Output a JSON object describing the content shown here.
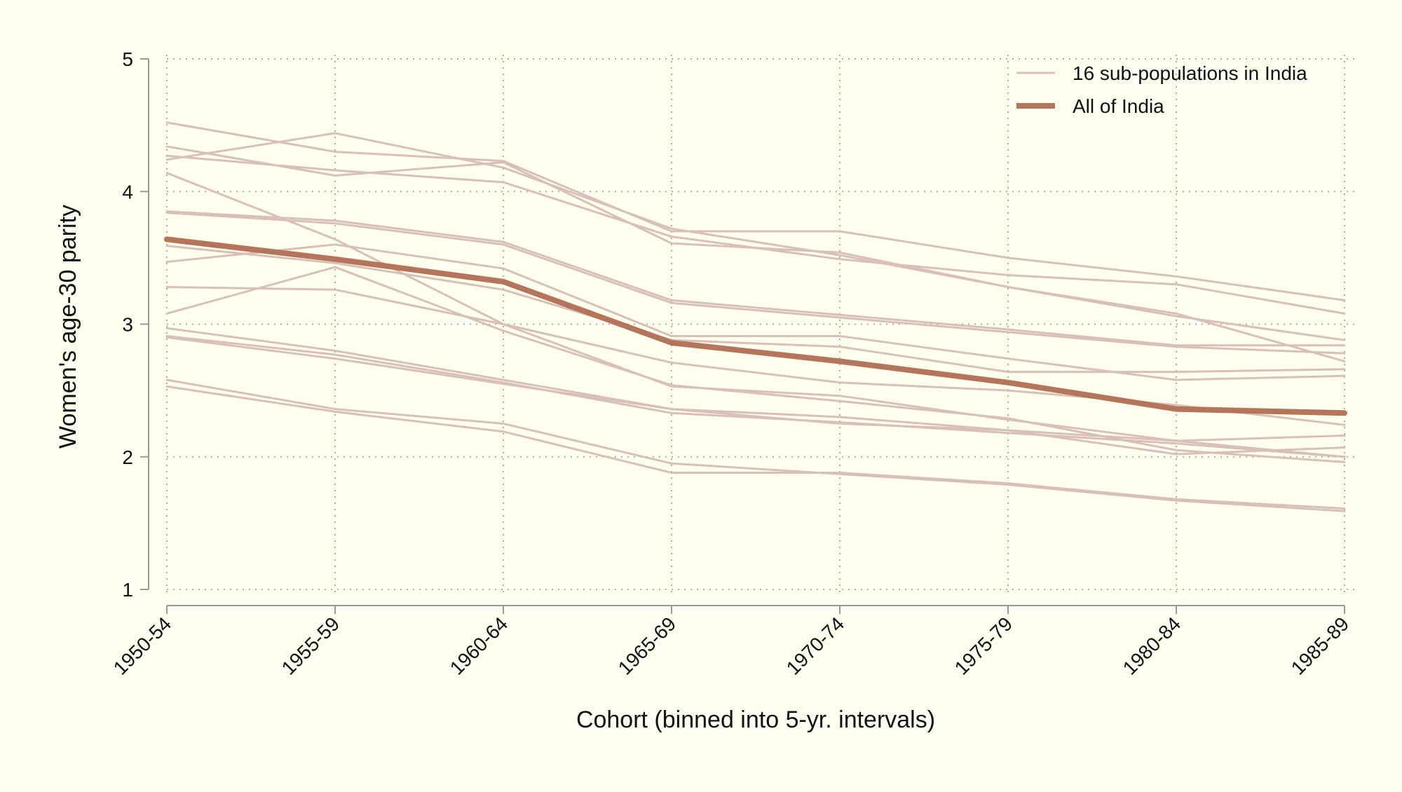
{
  "chart_data": {
    "type": "line",
    "title": "",
    "xlabel": "Cohort (binned into 5-yr. intervals)",
    "ylabel": "Women's age-30 parity",
    "categories": [
      "1950-54",
      "1955-59",
      "1960-64",
      "1965-69",
      "1970-74",
      "1975-79",
      "1980-84",
      "1985-89"
    ],
    "ylim": [
      1,
      5
    ],
    "yticks": [
      "1",
      "2",
      "3",
      "4",
      "5"
    ],
    "grid": true,
    "legend_position": "top-right",
    "colors": {
      "subpopulation": "#d9bfb8",
      "india": "#b5755a",
      "axis": "#999999",
      "grid": "#aaaaaa",
      "background": "#fffff0"
    },
    "legend": [
      {
        "label": "16 sub-populations in India",
        "style": "thin"
      },
      {
        "label": "All of India",
        "style": "thick"
      }
    ],
    "series": [
      {
        "group": "16 sub-populations in India",
        "values": [
          4.52,
          4.3,
          4.23,
          3.7,
          3.7,
          3.5,
          3.36,
          3.18
        ]
      },
      {
        "group": "16 sub-populations in India",
        "values": [
          4.24,
          4.44,
          4.18,
          3.72,
          3.52,
          3.28,
          3.06,
          2.88
        ]
      },
      {
        "group": "16 sub-populations in India",
        "values": [
          4.34,
          4.12,
          4.22,
          3.61,
          3.54,
          3.28,
          3.08,
          2.72
        ]
      },
      {
        "group": "16 sub-populations in India",
        "values": [
          4.27,
          4.16,
          4.07,
          3.66,
          3.49,
          3.37,
          3.3,
          3.08
        ]
      },
      {
        "group": "16 sub-populations in India",
        "values": [
          3.85,
          3.78,
          3.62,
          3.18,
          3.07,
          2.96,
          2.84,
          2.84
        ]
      },
      {
        "group": "16 sub-populations in India",
        "values": [
          3.84,
          3.76,
          3.6,
          3.16,
          3.05,
          2.94,
          2.83,
          2.78
        ]
      },
      {
        "group": "16 sub-populations in India",
        "values": [
          4.14,
          3.64,
          3.0,
          2.53,
          2.46,
          2.28,
          2.12,
          2.16
        ]
      },
      {
        "group": "16 sub-populations in India",
        "values": [
          3.47,
          3.6,
          3.42,
          2.91,
          2.91,
          2.74,
          2.58,
          2.61
        ]
      },
      {
        "group": "16 sub-populations in India",
        "values": [
          3.59,
          3.46,
          3.26,
          2.88,
          2.83,
          2.64,
          2.64,
          2.66
        ]
      },
      {
        "group": "16 sub-populations in India",
        "values": [
          3.28,
          3.26,
          3.0,
          2.71,
          2.56,
          2.5,
          2.39,
          2.24
        ]
      },
      {
        "group": "16 sub-populations in India",
        "values": [
          3.08,
          3.43,
          2.95,
          2.54,
          2.42,
          2.29,
          2.05,
          1.96
        ]
      },
      {
        "group": "16 sub-populations in India",
        "values": [
          2.97,
          2.8,
          2.58,
          2.36,
          2.3,
          2.2,
          2.02,
          2.07
        ]
      },
      {
        "group": "16 sub-populations in India",
        "values": [
          2.91,
          2.77,
          2.56,
          2.33,
          2.26,
          2.18,
          2.1,
          2.0
        ]
      },
      {
        "group": "16 sub-populations in India",
        "values": [
          2.58,
          2.36,
          2.25,
          1.95,
          1.87,
          1.79,
          1.67,
          1.59
        ]
      },
      {
        "group": "16 sub-populations in India",
        "values": [
          2.53,
          2.34,
          2.19,
          1.88,
          1.88,
          1.8,
          1.68,
          1.61
        ]
      },
      {
        "group": "16 sub-populations in India",
        "values": [
          2.9,
          2.74,
          2.55,
          2.36,
          2.25,
          2.2,
          2.12,
          2.0
        ]
      },
      {
        "name": "All of India",
        "values": [
          3.64,
          3.49,
          3.32,
          2.86,
          2.72,
          2.56,
          2.36,
          2.33
        ]
      }
    ]
  }
}
